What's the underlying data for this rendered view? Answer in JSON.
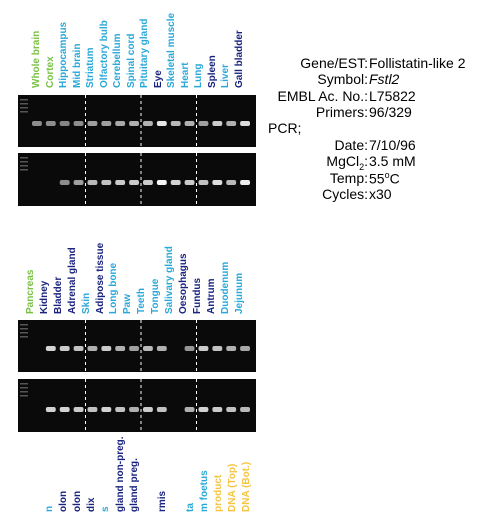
{
  "colors": {
    "green": "#7ac143",
    "cyan": "#2aa8d8",
    "navy": "#1a237e",
    "yellow": "#f5c542",
    "divider": "#ffffff"
  },
  "panel1": {
    "lanes": [
      {
        "label": "Whole brain",
        "color": "green"
      },
      {
        "label": "Cortex",
        "color": "green"
      },
      {
        "label": "Hippocampus",
        "color": "cyan"
      },
      {
        "label": "Mid brain",
        "color": "cyan"
      },
      {
        "label": "Striatum",
        "color": "cyan"
      },
      {
        "label": "Olfactory bulb",
        "color": "cyan"
      },
      {
        "label": "Cerebellum",
        "color": "cyan"
      },
      {
        "label": "Spinal cord",
        "color": "cyan"
      },
      {
        "label": "Pituitary gland",
        "color": "cyan"
      },
      {
        "label": "Eye",
        "color": "navy"
      },
      {
        "label": "Skeletal muscle",
        "color": "cyan"
      },
      {
        "label": "Heart",
        "color": "cyan"
      },
      {
        "label": "Lung",
        "color": "cyan"
      },
      {
        "label": "Spleen",
        "color": "navy"
      },
      {
        "label": "Liver",
        "color": "cyan"
      },
      {
        "label": "Gall bladder",
        "color": "navy"
      }
    ],
    "gel_top_intensity": [
      0.35,
      0.35,
      0.3,
      0.35,
      0.45,
      0.45,
      0.5,
      0.55,
      0.55,
      0.85,
      0.6,
      0.55,
      0.45,
      0.7,
      0.55,
      0.8
    ],
    "gel_bottom_intensity": [
      0.0,
      0.0,
      0.35,
      0.45,
      0.6,
      0.65,
      0.7,
      0.7,
      0.7,
      0.95,
      0.75,
      0.7,
      0.65,
      0.8,
      0.6,
      0.9
    ]
  },
  "panel2": {
    "lanes": [
      {
        "label": "Pancreas",
        "color": "green"
      },
      {
        "label": "Kidney",
        "color": "navy"
      },
      {
        "label": "Bladder",
        "color": "navy"
      },
      {
        "label": "Adrenal gland",
        "color": "navy"
      },
      {
        "label": "Skin",
        "color": "cyan"
      },
      {
        "label": "Adipose tissue",
        "color": "navy"
      },
      {
        "label": "Long bone",
        "color": "cyan"
      },
      {
        "label": "Paw",
        "color": "cyan"
      },
      {
        "label": "Teeth",
        "color": "cyan"
      },
      {
        "label": "Tongue",
        "color": "cyan"
      },
      {
        "label": "Salivary gland",
        "color": "cyan"
      },
      {
        "label": "Oesophagus",
        "color": "navy"
      },
      {
        "label": "Fundus",
        "color": "navy"
      },
      {
        "label": "Antrum",
        "color": "navy"
      },
      {
        "label": "Duodenum",
        "color": "cyan"
      },
      {
        "label": "Jejunum",
        "color": "cyan"
      }
    ],
    "gel_top_intensity": [
      0.0,
      0.75,
      0.7,
      0.65,
      0.55,
      0.7,
      0.55,
      0.45,
      0.6,
      0.55,
      0.0,
      0.4,
      0.7,
      0.65,
      0.55,
      0.5
    ],
    "gel_bottom_intensity": [
      0.0,
      0.75,
      0.75,
      0.7,
      0.65,
      0.75,
      0.65,
      0.55,
      0.7,
      0.65,
      0.0,
      0.55,
      0.75,
      0.7,
      0.65,
      0.6
    ]
  },
  "panel3": {
    "lanes": [
      {
        "label": "n",
        "color": "cyan"
      },
      {
        "label": "olon",
        "color": "navy"
      },
      {
        "label": "olon",
        "color": "navy"
      },
      {
        "label": "dix",
        "color": "navy"
      },
      {
        "label": "s",
        "color": "cyan"
      },
      {
        "label": "gland non-preg.",
        "color": "navy"
      },
      {
        "label": "gland preg.",
        "color": "navy"
      },
      {
        "label": "",
        "color": "navy"
      },
      {
        "label": "rmis",
        "color": "navy"
      },
      {
        "label": "",
        "color": "navy"
      },
      {
        "label": "ta",
        "color": "cyan"
      },
      {
        "label": "m foetus",
        "color": "cyan"
      },
      {
        "label": "product",
        "color": "yellow"
      },
      {
        "label": "DNA (Top)",
        "color": "yellow"
      },
      {
        "label": "DNA (Bot.)",
        "color": "yellow"
      }
    ]
  },
  "info": {
    "gene_key": "Gene/EST:",
    "gene_val": "Follistatin-like 2",
    "symbol_key": "Symbol:",
    "symbol_val": "Fstl2",
    "embl_key": "EMBL Ac. No.:",
    "embl_val": "L75822",
    "primers_key": "Primers:",
    "primers_val": "96/329",
    "pcr_key": "PCR;",
    "date_key": "Date:",
    "date_val": "7/10/96",
    "mgcl_key": "MgCl",
    "mgcl_sub": "2",
    "mgcl_colon": ":",
    "mgcl_val": "3.5 mM",
    "temp_key": "Temp:",
    "temp_val": "55",
    "temp_sup": "o",
    "temp_unit": "C",
    "cycles_key": "Cycles:",
    "cycles_val": "x30"
  }
}
